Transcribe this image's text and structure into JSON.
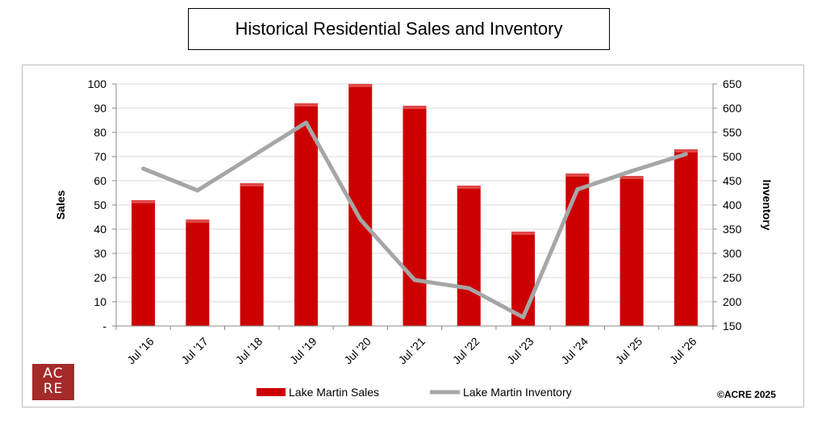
{
  "title": "Historical Residential Sales and Inventory",
  "logo": {
    "line1": "AC",
    "line2": "RE"
  },
  "copyright": "©ACRE 2025",
  "colors": {
    "bar": "#cc0000",
    "line": "#a6a6a6",
    "grid": "#d9d9d9"
  },
  "chart_data": {
    "type": "bar",
    "categories": [
      "Jul '16",
      "Jul '17",
      "Jul '18",
      "Jul '19",
      "Jul '20",
      "Jul '21",
      "Jul '22",
      "Jul '23",
      "Jul '24",
      "Jul '25",
      "Jul '26"
    ],
    "series": [
      {
        "name": "Lake Martin Sales",
        "type": "bar",
        "axis": "left",
        "values": [
          52,
          44,
          59,
          92,
          100,
          91,
          58,
          39,
          63,
          62,
          73
        ]
      },
      {
        "name": "Lake Martin Inventory",
        "type": "line",
        "axis": "right",
        "values": [
          475,
          430,
          500,
          570,
          370,
          245,
          228,
          168,
          432,
          470,
          505
        ]
      }
    ],
    "ylabel": "Sales",
    "y2label": "Inventory",
    "ylim": [
      0,
      100
    ],
    "y2lim": [
      150,
      650
    ],
    "yticks": [
      "-",
      "10",
      "20",
      "30",
      "40",
      "50",
      "60",
      "70",
      "80",
      "90",
      "100"
    ],
    "y2ticks": [
      "150",
      "200",
      "250",
      "300",
      "350",
      "400",
      "450",
      "500",
      "550",
      "600",
      "650"
    ],
    "grid": true,
    "legend": "bottom"
  }
}
